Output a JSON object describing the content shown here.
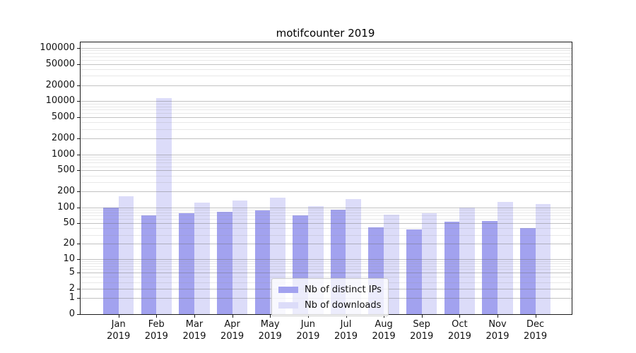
{
  "title": "motifcounter 2019",
  "chart_data": {
    "type": "bar",
    "title": "motifcounter 2019",
    "categories": [
      "Jan 2019",
      "Feb 2019",
      "Mar 2019",
      "Apr 2019",
      "May 2019",
      "Jun 2019",
      "Jul 2019",
      "Aug 2019",
      "Sep 2019",
      "Oct 2019",
      "Nov 2019",
      "Dec 2019"
    ],
    "series": [
      {
        "name": "Nb of distinct IPs",
        "color": "#a2a2ef",
        "values": [
          100,
          70,
          78,
          82,
          88,
          70,
          90,
          42,
          38,
          54,
          55,
          40
        ]
      },
      {
        "name": "Nb of downloads",
        "color": "#dcdcf9",
        "values": [
          165,
          11400,
          122,
          136,
          155,
          106,
          144,
          74,
          77,
          100,
          126,
          117
        ]
      }
    ],
    "xlabel": "",
    "ylabel": "",
    "yscale": "log1p",
    "ylim": [
      0,
      130000
    ],
    "yticks": [
      0,
      1,
      2,
      5,
      10,
      20,
      50,
      100,
      200,
      500,
      1000,
      2000,
      5000,
      10000,
      20000,
      50000,
      100000
    ],
    "ytick_labels": [
      "0",
      "1",
      "2",
      "5",
      "10",
      "20",
      "50",
      "100",
      "200",
      "500",
      "1000",
      "2000",
      "5000",
      "10000",
      "20000",
      "50000",
      "100000"
    ],
    "grid": true,
    "legend_position": "lower center"
  },
  "colors": {
    "grid_major": "rgba(110,110,110,0.42)",
    "grid_minor": "rgba(150,150,150,0.22)",
    "axis": "#1a1a1a"
  }
}
